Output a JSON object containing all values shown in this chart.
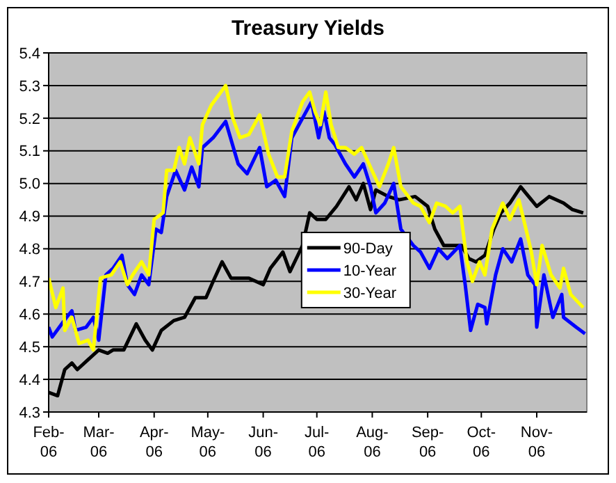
{
  "chart_data": {
    "type": "line",
    "title": "Treasury Yields",
    "xlim": [
      "2006-02-01",
      "2006-11-29"
    ],
    "xticks": [
      {
        "value": "2006-02-01",
        "label": "Feb-06"
      },
      {
        "value": "2006-03-01",
        "label": "Mar-06"
      },
      {
        "value": "2006-04-01",
        "label": "Apr-06"
      },
      {
        "value": "2006-05-01",
        "label": "May-06"
      },
      {
        "value": "2006-06-01",
        "label": "Jun-06"
      },
      {
        "value": "2006-07-01",
        "label": "Jul-06"
      },
      {
        "value": "2006-08-01",
        "label": "Aug-06"
      },
      {
        "value": "2006-09-01",
        "label": "Sep-06"
      },
      {
        "value": "2006-10-01",
        "label": "Oct-06"
      },
      {
        "value": "2006-11-01",
        "label": "Nov-06"
      }
    ],
    "ylim": [
      4.3,
      5.4
    ],
    "yticks": [
      4.3,
      4.4,
      4.5,
      4.6,
      4.7,
      4.8,
      4.9,
      {
        "value": 5,
        "label": "5.0"
      },
      5.1,
      5.2,
      5.3,
      5.4
    ],
    "grid": "y",
    "legend": "center",
    "marker": "none",
    "line_style": "solid",
    "series": [
      {
        "name": "90-Day",
        "color": "#000000",
        "x": [
          "2006-02-01",
          "2006-02-06",
          "2006-02-10",
          "2006-02-14",
          "2006-02-17",
          "2006-02-23",
          "2006-03-01",
          "2006-03-06",
          "2006-03-09",
          "2006-03-15",
          "2006-03-22",
          "2006-03-27",
          "2006-03-31",
          "2006-04-05",
          "2006-04-12",
          "2006-04-18",
          "2006-04-24",
          "2006-04-30",
          "2006-05-04",
          "2006-05-09",
          "2006-05-14",
          "2006-05-24",
          "2006-06-01",
          "2006-06-05",
          "2006-06-12",
          "2006-06-16",
          "2006-06-23",
          "2006-06-27",
          "2006-07-01",
          "2006-07-06",
          "2006-07-12",
          "2006-07-19",
          "2006-07-23",
          "2006-07-27",
          "2006-07-31",
          "2006-08-03",
          "2006-08-10",
          "2006-08-16",
          "2006-08-25",
          "2006-09-01",
          "2006-09-05",
          "2006-09-10",
          "2006-09-16",
          "2006-09-20",
          "2006-09-24",
          "2006-09-28",
          "2006-10-03",
          "2006-10-08",
          "2006-10-12",
          "2006-10-17",
          "2006-10-23",
          "2006-11-01",
          "2006-11-08",
          "2006-11-16",
          "2006-11-21",
          "2006-11-27"
        ],
        "values": [
          4.36,
          4.35,
          4.43,
          4.45,
          4.43,
          4.46,
          4.49,
          4.48,
          4.49,
          4.49,
          4.57,
          4.52,
          4.49,
          4.55,
          4.58,
          4.59,
          4.65,
          4.65,
          4.7,
          4.76,
          4.71,
          4.71,
          4.69,
          4.74,
          4.79,
          4.73,
          4.81,
          4.91,
          4.89,
          4.89,
          4.93,
          4.99,
          4.95,
          5.0,
          4.92,
          4.98,
          4.96,
          4.95,
          4.96,
          4.93,
          4.86,
          4.81,
          4.81,
          4.81,
          4.77,
          4.76,
          4.78,
          4.86,
          4.91,
          4.94,
          4.99,
          4.93,
          4.96,
          4.94,
          4.92,
          4.91
        ]
      },
      {
        "name": "10-Year",
        "color": "#0000ff",
        "x": [
          "2006-02-01",
          "2006-02-03",
          "2006-02-07",
          "2006-02-11",
          "2006-02-14",
          "2006-02-16",
          "2006-02-22",
          "2006-02-26",
          "2006-03-01",
          "2006-03-05",
          "2006-03-09",
          "2006-03-14",
          "2006-03-17",
          "2006-03-21",
          "2006-03-25",
          "2006-03-29",
          "2006-04-02",
          "2006-04-05",
          "2006-04-08",
          "2006-04-13",
          "2006-04-18",
          "2006-04-22",
          "2006-04-26",
          "2006-04-28",
          "2006-05-04",
          "2006-05-11",
          "2006-05-18",
          "2006-05-23",
          "2006-05-30",
          "2006-06-03",
          "2006-06-08",
          "2006-06-13",
          "2006-06-17",
          "2006-06-24",
          "2006-06-28",
          "2006-07-02",
          "2006-07-05",
          "2006-07-08",
          "2006-07-11",
          "2006-07-17",
          "2006-07-22",
          "2006-07-27",
          "2006-07-31",
          "2006-08-03",
          "2006-08-08",
          "2006-08-13",
          "2006-08-17",
          "2006-08-24",
          "2006-08-28",
          "2006-09-02",
          "2006-09-07",
          "2006-09-12",
          "2006-09-19",
          "2006-09-22",
          "2006-09-25",
          "2006-09-29",
          "2006-10-03",
          "2006-10-04",
          "2006-10-09",
          "2006-10-13",
          "2006-10-18",
          "2006-10-23",
          "2006-10-27",
          "2006-10-31",
          "2006-11-01",
          "2006-11-05",
          "2006-11-10",
          "2006-11-15",
          "2006-11-16",
          "2006-11-23",
          "2006-11-28"
        ],
        "values": [
          4.56,
          4.53,
          4.56,
          4.59,
          4.61,
          4.55,
          4.56,
          4.59,
          4.52,
          4.72,
          4.74,
          4.78,
          4.69,
          4.66,
          4.72,
          4.69,
          4.86,
          4.85,
          4.96,
          5.04,
          4.98,
          5.05,
          4.99,
          5.11,
          5.14,
          5.19,
          5.06,
          5.03,
          5.11,
          4.99,
          5.01,
          4.96,
          5.14,
          5.21,
          5.25,
          5.14,
          5.22,
          5.14,
          5.12,
          5.06,
          5.02,
          5.06,
          4.99,
          4.91,
          4.94,
          5.0,
          4.86,
          4.81,
          4.79,
          4.74,
          4.8,
          4.77,
          4.81,
          4.69,
          4.55,
          4.63,
          4.62,
          4.57,
          4.72,
          4.8,
          4.76,
          4.83,
          4.72,
          4.69,
          4.56,
          4.72,
          4.59,
          4.66,
          4.59,
          4.56,
          4.54
        ]
      },
      {
        "name": "30-Year",
        "color": "#ffff00",
        "x": [
          "2006-02-01",
          "2006-02-05",
          "2006-02-09",
          "2006-02-10",
          "2006-02-14",
          "2006-02-18",
          "2006-02-23",
          "2006-02-26",
          "2006-03-02",
          "2006-03-08",
          "2006-03-13",
          "2006-03-17",
          "2006-03-20",
          "2006-03-25",
          "2006-03-29",
          "2006-04-01",
          "2006-04-06",
          "2006-04-08",
          "2006-04-12",
          "2006-04-15",
          "2006-04-18",
          "2006-04-21",
          "2006-04-26",
          "2006-04-28",
          "2006-05-03",
          "2006-05-11",
          "2006-05-15",
          "2006-05-19",
          "2006-05-24",
          "2006-05-30",
          "2006-06-04",
          "2006-06-09",
          "2006-06-13",
          "2006-06-17",
          "2006-06-23",
          "2006-06-27",
          "2006-06-30",
          "2006-07-03",
          "2006-07-06",
          "2006-07-09",
          "2006-07-13",
          "2006-07-17",
          "2006-07-22",
          "2006-07-26",
          "2006-07-31",
          "2006-08-05",
          "2006-08-10",
          "2006-08-13",
          "2006-08-17",
          "2006-08-24",
          "2006-08-28",
          "2006-09-02",
          "2006-09-06",
          "2006-09-11",
          "2006-09-15",
          "2006-09-19",
          "2006-09-23",
          "2006-09-26",
          "2006-09-30",
          "2006-10-03",
          "2006-10-07",
          "2006-10-13",
          "2006-10-17",
          "2006-10-22",
          "2006-10-26",
          "2006-10-29",
          "2006-11-01",
          "2006-11-04",
          "2006-11-09",
          "2006-11-14",
          "2006-11-16",
          "2006-11-20",
          "2006-11-27"
        ],
        "values": [
          4.71,
          4.62,
          4.68,
          4.55,
          4.59,
          4.51,
          4.52,
          4.49,
          4.71,
          4.72,
          4.76,
          4.69,
          4.72,
          4.76,
          4.72,
          4.89,
          4.91,
          5.04,
          5.04,
          5.11,
          5.06,
          5.14,
          5.06,
          5.18,
          5.24,
          5.3,
          5.2,
          5.14,
          5.15,
          5.21,
          5.09,
          5.02,
          5.02,
          5.16,
          5.25,
          5.28,
          5.22,
          5.18,
          5.28,
          5.18,
          5.11,
          5.11,
          5.09,
          5.11,
          5.05,
          4.99,
          5.06,
          5.11,
          4.99,
          4.94,
          4.93,
          4.88,
          4.94,
          4.93,
          4.91,
          4.93,
          4.76,
          4.7,
          4.76,
          4.72,
          4.86,
          4.94,
          4.89,
          4.95,
          4.86,
          4.79,
          4.69,
          4.81,
          4.72,
          4.68,
          4.74,
          4.66,
          4.62
        ]
      }
    ]
  }
}
